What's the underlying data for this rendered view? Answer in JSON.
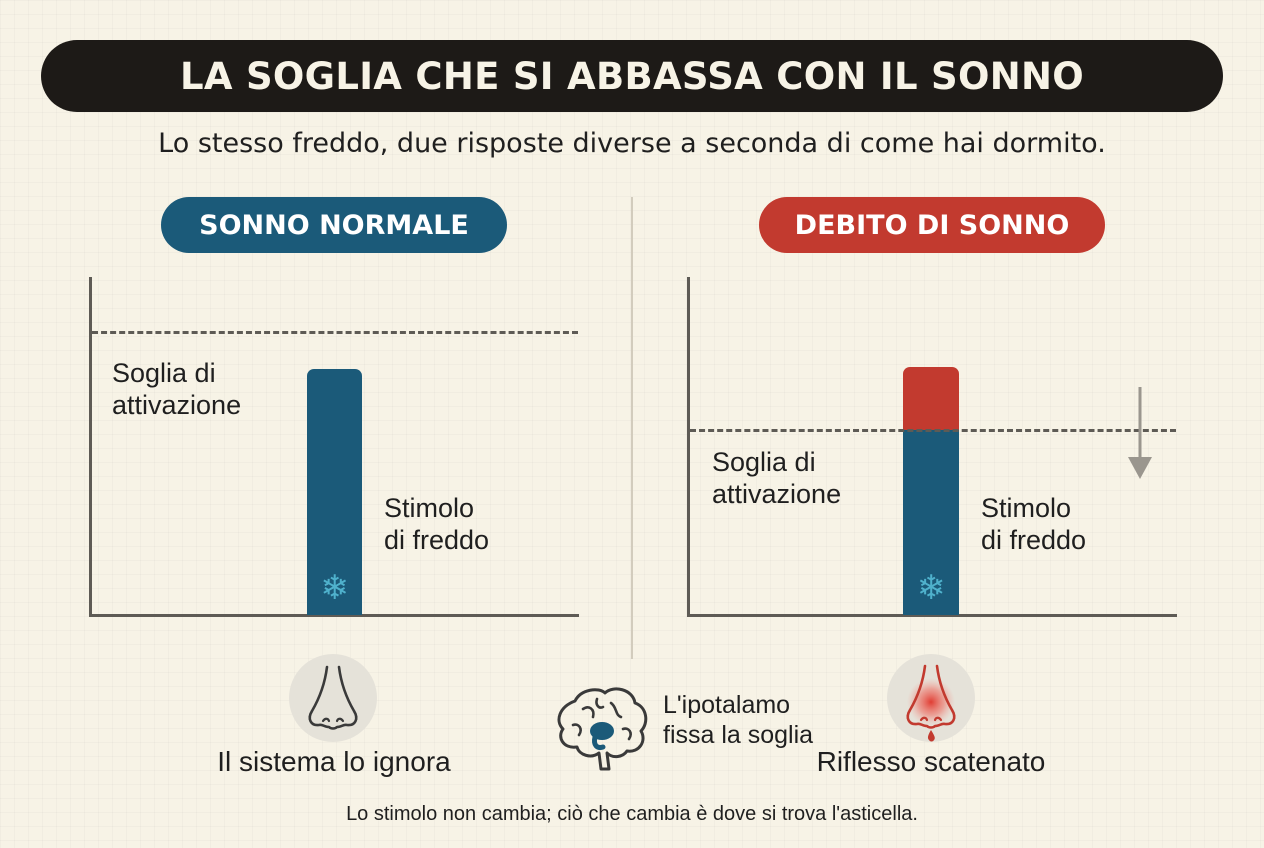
{
  "title": "LA SOGLIA CHE SI ABBASSA CON IL SONNO",
  "subtitle": "Lo stesso freddo, due risposte diverse a seconda di come hai dormito.",
  "left_panel": {
    "label": "SONNO NORMALE",
    "color": "#1b5a79",
    "threshold_label": "Soglia di\nattivazione",
    "stimulus_label": "Stimolo\ndi freddo",
    "icon": "snowflake-icon",
    "response_icon": "nose-icon",
    "response_label": "Il sistema lo ignora"
  },
  "right_panel": {
    "label": "DEBITO DI SONNO",
    "color": "#c23a2f",
    "threshold_label": "Soglia di\nattivazione",
    "stimulus_label": "Stimolo\ndi freddo",
    "icon": "snowflake-icon",
    "threshold_direction_icon": "arrow-down-icon",
    "response_icon": "irritated-nose-icon",
    "response_label": "Riflesso scatenato"
  },
  "center": {
    "icon": "brain-icon",
    "label": "L'ipotalamo\nfissa la soglia"
  },
  "footer": "Lo stimolo non cambia; ciò che cambia è dove si trova l'asticella.",
  "colors": {
    "background": "#f7f3e6",
    "title_bar": "#1d1a17",
    "normal": "#1b5a79",
    "debt": "#c23a2f",
    "snowflake": "#4fb1cc",
    "axis": "#5e5b55"
  }
}
